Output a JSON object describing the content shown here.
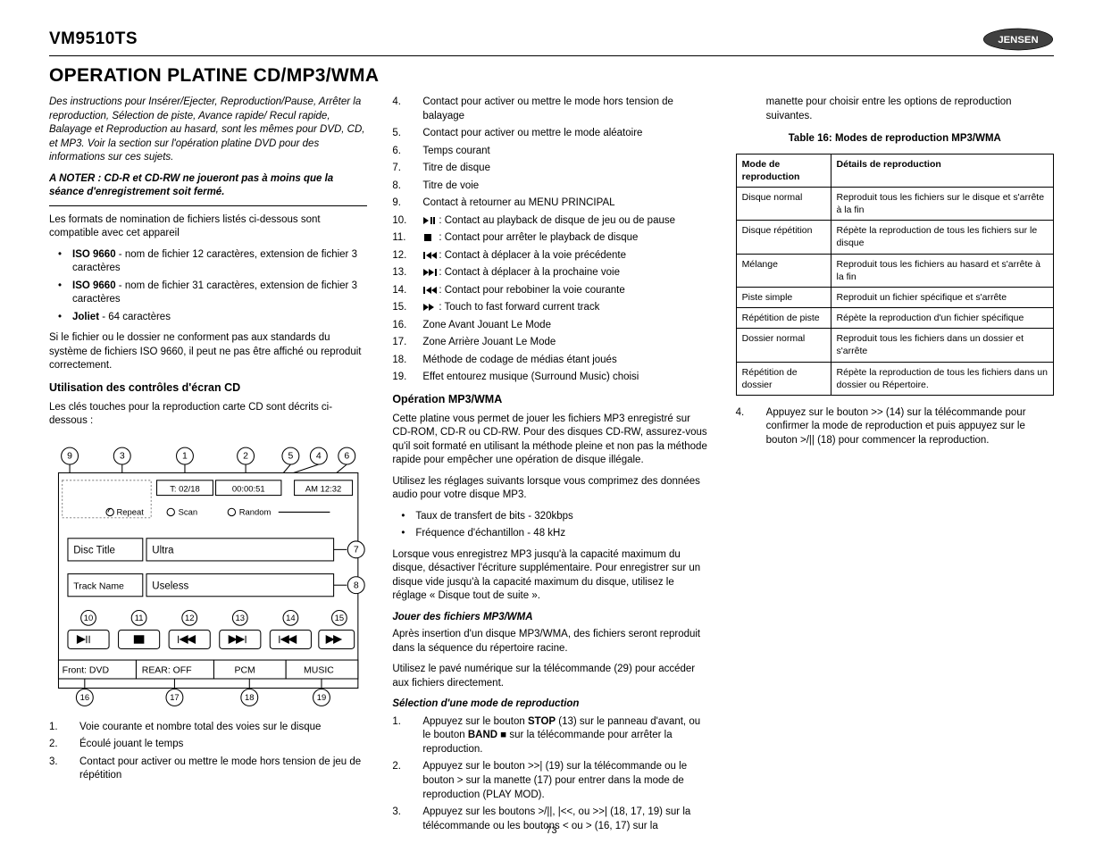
{
  "header": {
    "model": "VM9510TS",
    "logo_text": "JENSEN",
    "logo_bg": "#333333",
    "logo_fg": "#ffffff"
  },
  "title": "OPERATION PLATINE CD/MP3/WMA",
  "page_number": "73",
  "col1": {
    "intro": "Des instructions pour Insérer/Ejecter, Reproduction/Pause, Arrêter la reproduction, Sélection de piste, Avance rapide/ Recul rapide, Balayage et Reproduction au hasard, sont les mêmes pour DVD, CD, et MP3. Voir la section sur l'opération platine DVD pour des informations sur ces sujets.",
    "note": "A NOTER : CD-R et CD-RW ne joueront pas à moins que la séance d'enregistrement soit fermé.",
    "formats_text": "Les formats de nomination de fichiers listés ci-dessous sont compatible avec cet appareil",
    "formats": [
      {
        "label": "ISO 9660",
        "desc": " - nom de fichier 12 caractères, extension de fichier 3 caractères"
      },
      {
        "label": "ISO 9660",
        "desc": " - nom de fichier 31 caractères, extension de fichier 3 caractères"
      },
      {
        "label": "Joliet",
        "desc": " - 64 caractères"
      }
    ],
    "compat_note": "Si le fichier ou le dossier ne conforment pas aux standards du système de fichiers ISO 9660, il peut ne pas être affiché ou reproduit correctement.",
    "controls_heading": "Utilisation des contrôles d'écran CD",
    "controls_intro": "Les clés touches pour la reproduction carte CD sont décrits ci-dessous :",
    "diagram": {
      "callouts_top": [
        "9",
        "3",
        "1",
        "2",
        "5",
        "4",
        "6"
      ],
      "callouts_right": [
        "7",
        "8"
      ],
      "callouts_mid": [
        "10",
        "11",
        "12",
        "13",
        "14",
        "15"
      ],
      "callouts_bottom": [
        "16",
        "17",
        "18",
        "19"
      ],
      "track_counter": "T: 02/18",
      "elapsed": "00:00:51",
      "clock": "AM 12:32",
      "repeat": "Repeat",
      "scan": "Scan",
      "random": "Random",
      "disc_title_label": "Disc Title",
      "disc_title_value": "Ultra",
      "track_name_label": "Track Name",
      "track_name_value": "Useless",
      "front": "Front: DVD",
      "rear": "REAR: OFF",
      "pcm": "PCM",
      "music": "MUSIC"
    },
    "legend_start": [
      {
        "n": "1.",
        "t": "Voie courante et nombre total des voies sur le disque"
      },
      {
        "n": "2.",
        "t": "Écoulé jouant le temps"
      },
      {
        "n": "3.",
        "t": "Contact pour activer ou mettre le mode hors tension de jeu de répétition"
      }
    ]
  },
  "col2": {
    "legend_cont": [
      {
        "n": "4.",
        "t": "Contact pour activer ou mettre le mode hors tension de balayage"
      },
      {
        "n": "5.",
        "t": "Contact pour activer ou mettre le mode aléatoire"
      },
      {
        "n": "6.",
        "t": "Temps courant"
      },
      {
        "n": "7.",
        "t": "Titre de disque"
      },
      {
        "n": "8.",
        "t": "Titre de voie"
      },
      {
        "n": "9.",
        "t": "Contact à retourner au MENU PRINCIPAL"
      },
      {
        "n": "10.",
        "icon": "playpause",
        "t": ": Contact au playback de disque de jeu ou de pause"
      },
      {
        "n": "11.",
        "icon": "stop",
        "t": ": Contact pour arrêter le playback de disque"
      },
      {
        "n": "12.",
        "icon": "prev",
        "t": ": Contact à déplacer à la voie précédente"
      },
      {
        "n": "13.",
        "icon": "next",
        "t": ": Contact à déplacer à la prochaine voie"
      },
      {
        "n": "14.",
        "icon": "rew",
        "t": ": Contact pour rebobiner la voie courante"
      },
      {
        "n": "15.",
        "icon": "ff",
        "t": ": Touch to fast forward current track"
      },
      {
        "n": "16.",
        "t": "Zone Avant Jouant Le Mode"
      },
      {
        "n": "17.",
        "t": "Zone Arrière Jouant Le Mode"
      },
      {
        "n": "18.",
        "t": "Méthode de codage de médias étant joués"
      },
      {
        "n": "19.",
        "t": "Effet entourez musique (Surround Music) choisi"
      }
    ],
    "mp3_heading": "Opération MP3/WMA",
    "mp3_p1": "Cette platine vous permet de jouer les fichiers MP3 enregistré sur CD-ROM, CD-R ou CD-RW. Pour des disques CD-RW, assurez-vous qu'il soit formaté en utilisant la méthode pleine et non pas la méthode rapide pour empêcher une opération de disque illégale.",
    "mp3_p2": "Utilisez les réglages suivants lorsque vous comprimez des données audio pour votre disque MP3.",
    "mp3_settings": [
      "Taux de transfert de bits - 320kbps",
      "Fréquence d'échantillon - 48 kHz"
    ],
    "mp3_p3": "Lorsque vous enregistrez MP3 jusqu'à la capacité maximum du disque, désactiver l'écriture supplémentaire. Pour enregistrer sur un disque vide jusqu'à la capacité maximum du disque, utilisez le réglage « Disque tout de suite ».",
    "play_heading": "Jouer des fichiers MP3/WMA",
    "play_p1": "Après insertion d'un disque MP3/WMA, des fichiers seront reproduit dans la séquence du répertoire racine.",
    "play_p2": "Utilisez le pavé numérique sur la télécommande (29) pour accéder aux fichiers directement.",
    "select_heading": "Sélection d'une mode de reproduction",
    "select_steps": [
      {
        "n": "1.",
        "html": "Appuyez sur le bouton <b>STOP</b> (13) sur le panneau d'avant, ou le bouton <b>BAND</b> ■ sur la télécommande pour arrêter la reproduction."
      },
      {
        "n": "2.",
        "html": "Appuyez sur le bouton >>| (19) sur la télécommande ou le bouton > sur la manette (17) pour entrer dans la mode de reproduction (PLAY MOD)."
      },
      {
        "n": "3.",
        "html": "Appuyez sur les boutons >/||, |<<, ou >>| (18, 17, 19) sur la télécommande ou les boutons < ou > (16, 17) sur la"
      }
    ]
  },
  "col3": {
    "cont_text": "manette pour choisir entre les options de reproduction suivantes.",
    "table_caption": "Table 16: Modes de reproduction MP3/WMA",
    "table": {
      "headers": [
        "Mode de reproduction",
        "Détails de reproduction"
      ],
      "rows": [
        [
          "Disque normal",
          "Reproduit tous les fichiers sur le disque et s'arrête à la fin"
        ],
        [
          "Disque répétition",
          "Répète la reproduction de tous les fichiers sur le disque"
        ],
        [
          "Mélange",
          "Reproduit tous les fichiers au hasard et s'arrête à la fin"
        ],
        [
          "Piste simple",
          "Reproduit un fichier spécifique et s'arrête"
        ],
        [
          "Répétition de piste",
          "Répète la reproduction d'un fichier spécifique"
        ],
        [
          "Dossier normal",
          "Reproduit tous les fichiers dans un dossier et s'arrête"
        ],
        [
          "Répétition de dossier",
          "Répète la reproduction de tous les fichiers dans un dossier ou Répertoire."
        ]
      ]
    },
    "step4": {
      "n": "4.",
      "t": "Appuyez sur le bouton >> (14) sur la télécommande pour confirmer la mode de reproduction et puis appuyez sur le bouton >/|| (18) pour commencer la reproduction."
    }
  }
}
